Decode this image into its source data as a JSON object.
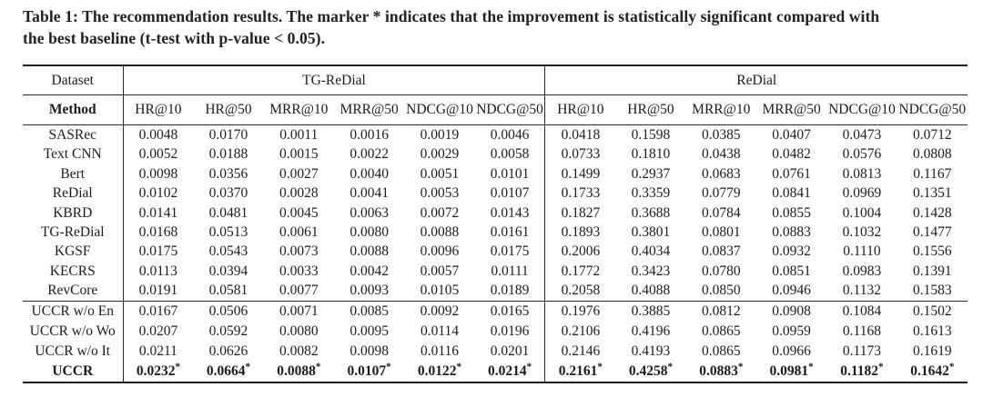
{
  "caption": {
    "line1": "Table 1: The recommendation results. The marker * indicates that the improvement is statistically significant compared with",
    "line2": "the best baseline (t-test with p-value < 0.05)."
  },
  "colors": {
    "text": "#1c1c1c",
    "rule": "#1e1e1e",
    "background": "#ffffff"
  },
  "table": {
    "corner_header": "Dataset",
    "method_header": "Method",
    "groups": [
      {
        "label": "TG-ReDial",
        "metrics": [
          "HR@10",
          "HR@50",
          "MRR@10",
          "MRR@50",
          "NDCG@10",
          "NDCG@50"
        ]
      },
      {
        "label": "ReDial",
        "metrics": [
          "HR@10",
          "HR@50",
          "MRR@10",
          "MRR@50",
          "NDCG@10",
          "NDCG@50"
        ]
      }
    ],
    "sections": [
      {
        "name": "baselines",
        "rows": [
          {
            "method": "SASRec",
            "values": [
              "0.0048",
              "0.0170",
              "0.0011",
              "0.0016",
              "0.0019",
              "0.0046",
              "0.0418",
              "0.1598",
              "0.0385",
              "0.0407",
              "0.0473",
              "0.0712"
            ]
          },
          {
            "method": "Text CNN",
            "values": [
              "0.0052",
              "0.0188",
              "0.0015",
              "0.0022",
              "0.0029",
              "0.0058",
              "0.0733",
              "0.1810",
              "0.0438",
              "0.0482",
              "0.0576",
              "0.0808"
            ]
          },
          {
            "method": "Bert",
            "values": [
              "0.0098",
              "0.0356",
              "0.0027",
              "0.0040",
              "0.0051",
              "0.0101",
              "0.1499",
              "0.2937",
              "0.0683",
              "0.0761",
              "0.0813",
              "0.1167"
            ]
          },
          {
            "method": "ReDial",
            "values": [
              "0.0102",
              "0.0370",
              "0.0028",
              "0.0041",
              "0.0053",
              "0.0107",
              "0.1733",
              "0.3359",
              "0.0779",
              "0.0841",
              "0.0969",
              "0.1351"
            ]
          },
          {
            "method": "KBRD",
            "values": [
              "0.0141",
              "0.0481",
              "0.0045",
              "0.0063",
              "0.0072",
              "0.0143",
              "0.1827",
              "0.3688",
              "0.0784",
              "0.0855",
              "0.1004",
              "0.1428"
            ]
          },
          {
            "method": "TG-ReDial",
            "values": [
              "0.0168",
              "0.0513",
              "0.0061",
              "0.0080",
              "0.0088",
              "0.0161",
              "0.1893",
              "0.3801",
              "0.0801",
              "0.0883",
              "0.1032",
              "0.1477"
            ]
          },
          {
            "method": "KGSF",
            "values": [
              "0.0175",
              "0.0543",
              "0.0073",
              "0.0088",
              "0.0096",
              "0.0175",
              "0.2006",
              "0.4034",
              "0.0837",
              "0.0932",
              "0.1110",
              "0.1556"
            ]
          },
          {
            "method": "KECRS",
            "values": [
              "0.0113",
              "0.0394",
              "0.0033",
              "0.0042",
              "0.0057",
              "0.0111",
              "0.1772",
              "0.3423",
              "0.0780",
              "0.0851",
              "0.0983",
              "0.1391"
            ]
          },
          {
            "method": "RevCore",
            "values": [
              "0.0191",
              "0.0581",
              "0.0077",
              "0.0093",
              "0.0105",
              "0.0189",
              "0.2058",
              "0.4088",
              "0.0850",
              "0.0946",
              "0.1132",
              "0.1583"
            ]
          }
        ]
      },
      {
        "name": "uccr-variants",
        "rows": [
          {
            "method": "UCCR w/o En",
            "values": [
              "0.0167",
              "0.0506",
              "0.0071",
              "0.0085",
              "0.0092",
              "0.0165",
              "0.1976",
              "0.3885",
              "0.0812",
              "0.0908",
              "0.1084",
              "0.1502"
            ]
          },
          {
            "method": "UCCR w/o Wo",
            "values": [
              "0.0207",
              "0.0592",
              "0.0080",
              "0.0095",
              "0.0114",
              "0.0196",
              "0.2106",
              "0.4196",
              "0.0865",
              "0.0959",
              "0.1168",
              "0.1613"
            ]
          },
          {
            "method": "UCCR w/o It",
            "values": [
              "0.0211",
              "0.0626",
              "0.0082",
              "0.0098",
              "0.0116",
              "0.0201",
              "0.2146",
              "0.4193",
              "0.0865",
              "0.0966",
              "0.1173",
              "0.1619"
            ]
          },
          {
            "method": "UCCR",
            "bold": true,
            "values": [
              "0.0232*",
              "0.0664*",
              "0.0088*",
              "0.0107*",
              "0.0122*",
              "0.0214*",
              "0.2161*",
              "0.4258*",
              "0.0883*",
              "0.0981*",
              "0.1182*",
              "0.1642*"
            ]
          }
        ]
      }
    ]
  }
}
